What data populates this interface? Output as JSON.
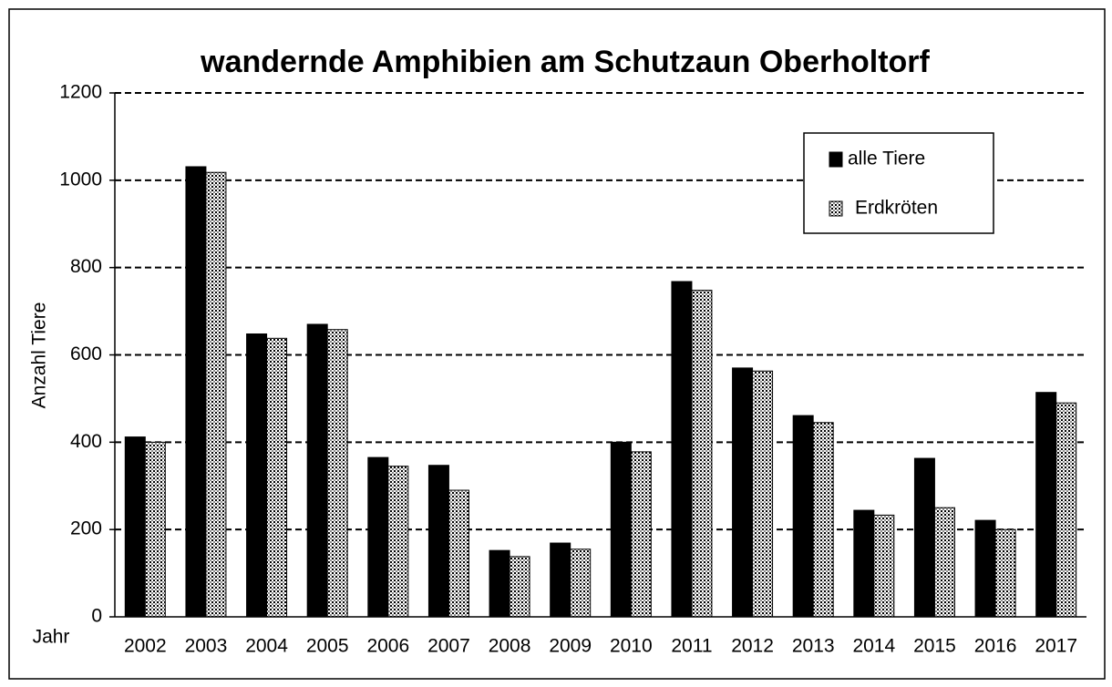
{
  "chart_data": {
    "type": "bar",
    "title": "wandernde Amphibien am Schutzaun Oberholtorf",
    "xlabel": "Jahr",
    "ylabel": "Anzahl Tiere",
    "categories": [
      "2002",
      "2003",
      "2004",
      "2005",
      "2006",
      "2007",
      "2008",
      "2009",
      "2010",
      "2011",
      "2012",
      "2013",
      "2014",
      "2015",
      "2016",
      "2017"
    ],
    "series": [
      {
        "name": "alle Tiere",
        "color": "#000000",
        "pattern": "solid",
        "values": [
          412,
          1031,
          648,
          670,
          365,
          347,
          152,
          169,
          400,
          768,
          570,
          461,
          244,
          363,
          221,
          514
        ]
      },
      {
        "name": "Erdkröten",
        "color": "#d0d0d0",
        "pattern": "dots",
        "values": [
          400,
          1018,
          638,
          658,
          345,
          290,
          138,
          155,
          378,
          748,
          563,
          445,
          233,
          250,
          200,
          490
        ]
      }
    ],
    "ylim": [
      0,
      1200
    ],
    "yticks": [
      0,
      200,
      400,
      600,
      800,
      1000,
      1200
    ],
    "grid": true,
    "legend": "upper right"
  }
}
